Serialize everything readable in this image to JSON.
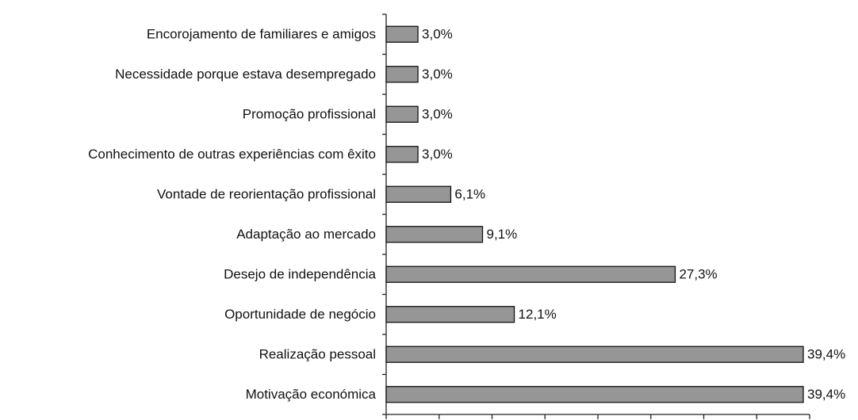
{
  "chart_data": {
    "type": "bar",
    "orientation": "horizontal",
    "categories": [
      "Encorojamento de familiares e amigos",
      "Necessidade porque estava desempregado",
      "Promoção profissional",
      "Conhecimento de outras experiências com êxito",
      "Vontade de reorientação profissional",
      "Adaptação ao mercado",
      "Desejo de independência",
      "Oportunidade de negócio",
      "Realização pessoal",
      "Motivação económica"
    ],
    "values": [
      3.0,
      3.0,
      3.0,
      3.0,
      6.1,
      9.1,
      27.3,
      12.1,
      39.4,
      39.4
    ],
    "value_labels": [
      "3,0%",
      "3,0%",
      "3,0%",
      "3,0%",
      "6,1%",
      "9,1%",
      "27,3%",
      "12,1%",
      "39,4%",
      "39,4%"
    ],
    "color": "#969696",
    "xlim": [
      0,
      40
    ],
    "xticks": [
      0,
      5,
      10,
      15,
      20,
      25,
      30,
      35,
      40
    ]
  }
}
